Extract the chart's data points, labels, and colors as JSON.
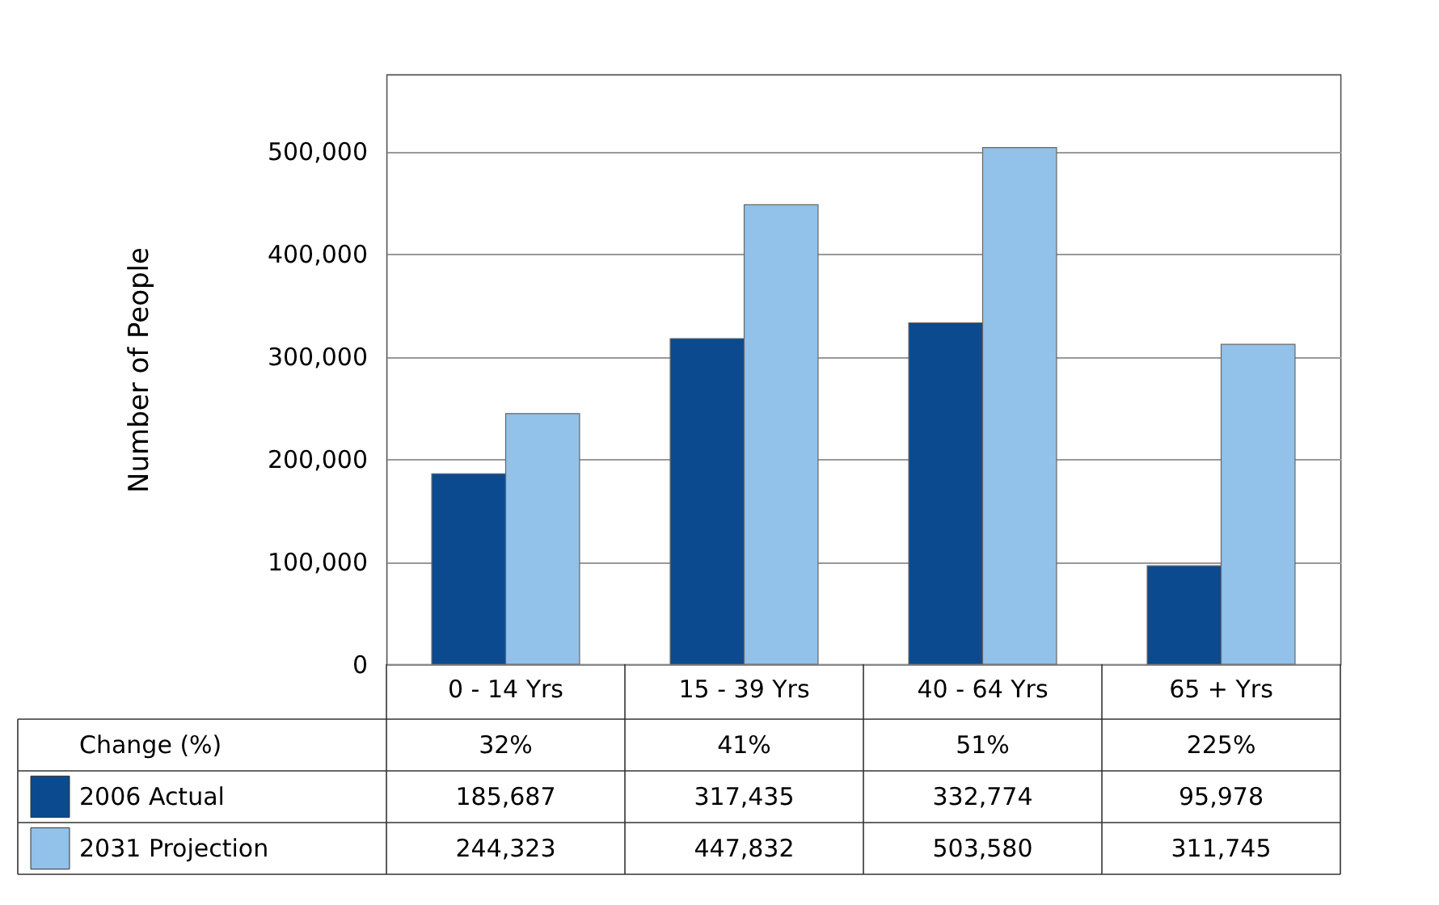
{
  "chart_data": {
    "type": "bar",
    "ylabel": "Number of People",
    "categories": [
      "0 - 14 Yrs",
      "15 - 39 Yrs",
      "40 - 64 Yrs",
      "65 + Yrs"
    ],
    "series": [
      {
        "name": "2006 Actual",
        "color": "#0b4a8e",
        "values": [
          185687,
          317435,
          332774,
          95978
        ],
        "value_labels": [
          "185,687",
          "317,435",
          "332,774",
          "95,978"
        ]
      },
      {
        "name": "2031 Projection",
        "color": "#92c1ea",
        "values": [
          244323,
          447832,
          503580,
          311745
        ],
        "value_labels": [
          "244,323",
          "447,832",
          "503,580",
          "311,745"
        ]
      }
    ],
    "ylim": [
      0,
      575000
    ],
    "yticks": [
      0,
      {
        "value": 100000,
        "label": "100,000"
      },
      {
        "value": 200000,
        "label": "200,000"
      },
      {
        "value": 300000,
        "label": "300,000"
      },
      {
        "value": 400000,
        "label": "400,000"
      },
      {
        "value": 500000,
        "label": "500,000"
      }
    ],
    "grid": "y",
    "legend": "bottom left",
    "annotations": [
      "Change (%)",
      "32%",
      "41%",
      "51%",
      "225%"
    ]
  }
}
